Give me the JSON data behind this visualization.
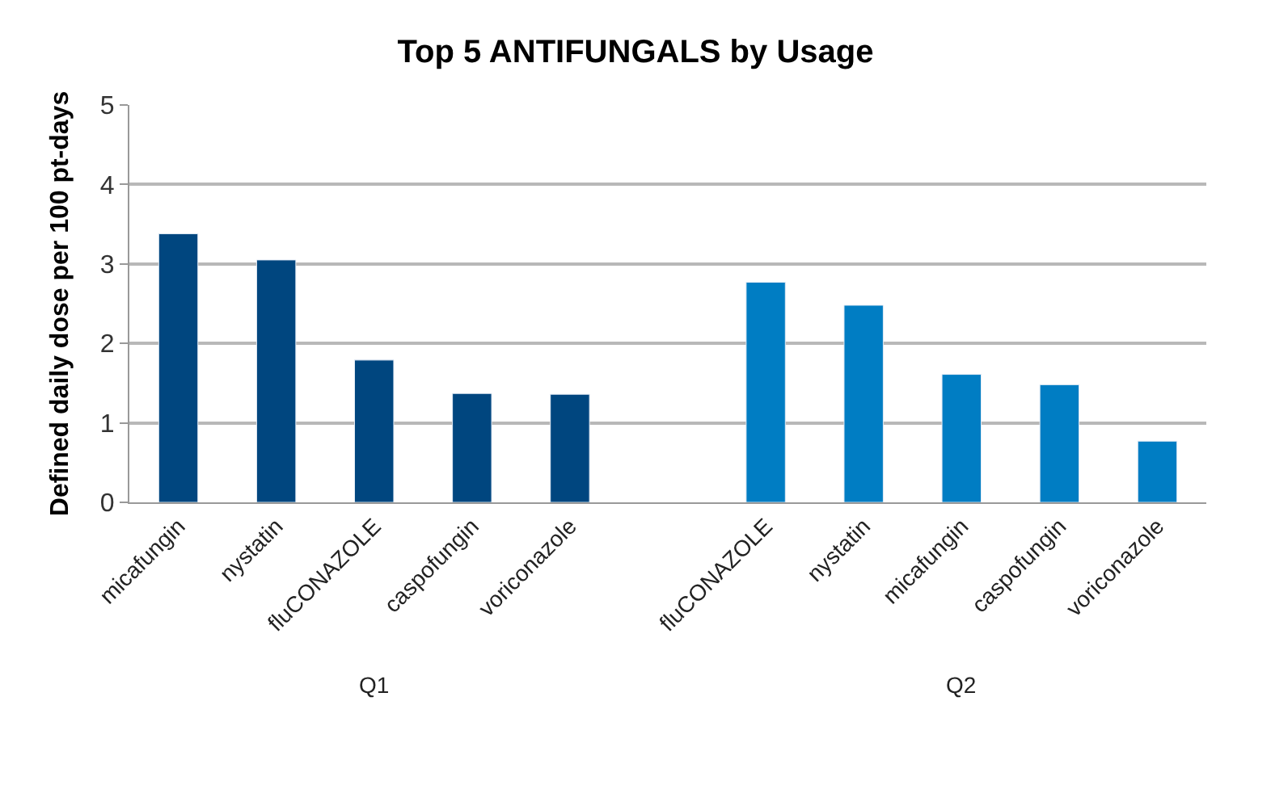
{
  "chart_data": {
    "type": "bar",
    "title": "Top 5 ANTIFUNGALS by Usage",
    "ylabel": "Defined daily dose per 100 pt-days",
    "categories": [
      "micafungin",
      "nystatin",
      "fluCONAZOLE",
      "caspofungin",
      "voriconazole",
      null,
      "fluCONAZOLE",
      "nystatin",
      "micafungin",
      "caspofungin",
      "voriconazole"
    ],
    "values": [
      3.38,
      3.05,
      1.79,
      1.37,
      1.36,
      null,
      2.77,
      2.48,
      1.61,
      1.48,
      0.77
    ],
    "colors": [
      "#00467f",
      "#00467f",
      "#00467f",
      "#00467f",
      "#00467f",
      "#00467f",
      "#007dc3",
      "#007dc3",
      "#007dc3",
      "#007dc3",
      "#007dc3"
    ],
    "annotations": [
      "Q1",
      "Q2"
    ],
    "ylim": [
      0,
      5
    ],
    "yticks": [
      0,
      1,
      2,
      3,
      4,
      5
    ],
    "grid": "y"
  }
}
